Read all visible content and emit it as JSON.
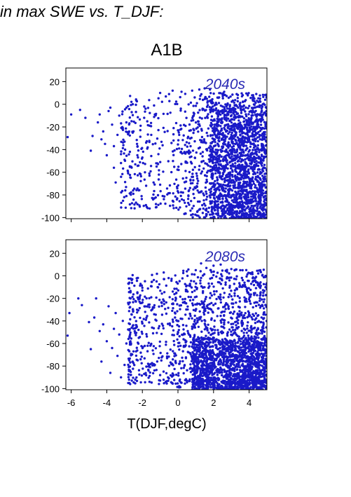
{
  "figure": {
    "header": "in max SWE vs. T_DJF:",
    "title": "A1B",
    "xlabel": "T(DJF,degC)"
  },
  "colors": {
    "points": "#1a1ac8",
    "tag": "#2a2ab4",
    "axis": "#000000"
  },
  "chart_data": [
    {
      "type": "scatter",
      "annotation": "2040s",
      "xlim": [
        -6.3,
        5.0
      ],
      "ylim": [
        -101,
        32
      ],
      "x_ticks": [
        -6,
        -4,
        -2,
        0,
        2,
        4
      ],
      "y_ticks": [
        20,
        0,
        -20,
        -40,
        -60,
        -80,
        -100
      ],
      "x_ticklabels_shown": false,
      "grid": false,
      "points": [
        [
          -6.2,
          -29
        ],
        [
          -6.0,
          -9
        ],
        [
          -5.5,
          -5
        ],
        [
          -5.2,
          -12
        ],
        [
          -4.9,
          -41
        ],
        [
          -4.8,
          -28
        ],
        [
          -4.5,
          -16
        ],
        [
          -4.4,
          -9
        ],
        [
          -4.3,
          -31
        ],
        [
          -4.2,
          -24
        ],
        [
          -4.1,
          -35
        ],
        [
          -4.0,
          -45
        ],
        [
          -3.9,
          -6
        ],
        [
          -3.8,
          -3
        ],
        [
          -3.7,
          -18
        ],
        [
          -3.6,
          -37
        ],
        [
          -3.6,
          -56
        ],
        [
          -3.5,
          -69
        ],
        [
          -3.4,
          -27
        ],
        [
          -3.3,
          -10
        ],
        [
          -3.2,
          -44
        ],
        [
          -3.1,
          -21
        ],
        [
          -3.0,
          -49
        ],
        [
          -3.0,
          -33
        ],
        [
          -2.9,
          -16
        ],
        [
          -2.8,
          -61
        ],
        [
          -2.7,
          -42
        ],
        [
          -2.6,
          -7
        ],
        [
          -2.5,
          -24
        ],
        [
          -2.4,
          -53
        ],
        [
          -2.3,
          -35
        ],
        [
          -2.2,
          -76
        ],
        [
          -2.1,
          -19
        ],
        [
          -2.0,
          -47
        ],
        [
          -1.9,
          -12
        ],
        [
          -1.8,
          -89
        ],
        [
          -1.7,
          -38
        ],
        [
          -1.6,
          -63
        ],
        [
          -1.5,
          -27
        ],
        [
          -1.4,
          -84
        ],
        [
          -1.3,
          -9
        ],
        [
          -1.2,
          -55
        ],
        [
          -1.1,
          -44
        ],
        [
          -1.0,
          -71
        ],
        [
          -1.0,
          10
        ],
        [
          -0.5,
          9
        ],
        [
          -0.3,
          12
        ],
        [
          0.2,
          11
        ],
        [
          0.8,
          12
        ],
        [
          1.2,
          13
        ],
        [
          1.5,
          14
        ],
        [
          1.8,
          13
        ],
        [
          2.6,
          11
        ],
        [
          3.3,
          9
        ],
        [
          3.6,
          7
        ],
        [
          4.2,
          4
        ],
        [
          4.6,
          3
        ],
        [
          4.9,
          4
        ]
      ],
      "generated_points": [
        {
          "count": 260,
          "x": [
            -3.2,
            0.8
          ],
          "y": [
            -92,
            8
          ],
          "bias": 0.6
        },
        {
          "count": 1000,
          "x": [
            -0.3,
            5.0
          ],
          "y": [
            -101,
            10
          ],
          "bias": 1.6
        },
        {
          "count": 1100,
          "x": [
            1.8,
            5.0
          ],
          "y": [
            -101,
            0
          ],
          "bias": 1.0
        }
      ]
    },
    {
      "type": "scatter",
      "annotation": "2080s",
      "xlim": [
        -6.3,
        5.0
      ],
      "ylim": [
        -101,
        32
      ],
      "x_ticks": [
        -6,
        -4,
        -2,
        0,
        2,
        4
      ],
      "y_ticks": [
        20,
        0,
        -20,
        -40,
        -60,
        -80,
        -100
      ],
      "x_ticklabels_shown": true,
      "grid": false,
      "points": [
        [
          -6.2,
          -53
        ],
        [
          -6.1,
          -33
        ],
        [
          -5.6,
          -20
        ],
        [
          -5.4,
          -26
        ],
        [
          -5.0,
          -41
        ],
        [
          -4.9,
          -65
        ],
        [
          -4.7,
          -37
        ],
        [
          -4.6,
          -20
        ],
        [
          -4.4,
          -49
        ],
        [
          -4.3,
          -76
        ],
        [
          -4.2,
          -43
        ],
        [
          -4.0,
          -58
        ],
        [
          -3.9,
          -27
        ],
        [
          -3.8,
          -86
        ],
        [
          -3.7,
          -64
        ],
        [
          -3.6,
          -47
        ],
        [
          -3.5,
          -33
        ],
        [
          -3.4,
          -71
        ],
        [
          -3.3,
          -52
        ],
        [
          -3.2,
          -90
        ],
        [
          -3.1,
          -40
        ],
        [
          -3.0,
          -79
        ],
        [
          -2.9,
          -60
        ],
        [
          -2.8,
          -24
        ],
        [
          -2.7,
          -84
        ],
        [
          -2.6,
          -46
        ],
        [
          -2.5,
          -67
        ],
        [
          -2.4,
          -92
        ],
        [
          -2.3,
          -30
        ],
        [
          -2.2,
          -55
        ],
        [
          -2.1,
          -74
        ],
        [
          -2.0,
          -13
        ],
        [
          -1.9,
          -87
        ],
        [
          -1.8,
          -39
        ],
        [
          -1.7,
          -62
        ],
        [
          -1.6,
          -94
        ],
        [
          -1.5,
          -19
        ],
        [
          -1.4,
          -51
        ],
        [
          -1.3,
          -79
        ],
        [
          -1.2,
          -5
        ],
        [
          -1.0,
          -88
        ],
        [
          -0.8,
          3
        ],
        [
          0.5,
          4
        ],
        [
          1.0,
          5
        ],
        [
          1.3,
          11
        ],
        [
          1.6,
          7
        ],
        [
          2.0,
          9
        ],
        [
          2.4,
          10
        ],
        [
          3.0,
          6
        ],
        [
          3.5,
          5
        ],
        [
          4.2,
          -2
        ]
      ],
      "generated_points": [
        {
          "count": 420,
          "x": [
            -2.8,
            1.5
          ],
          "y": [
            -96,
            2
          ],
          "bias": 0.7
        },
        {
          "count": 1000,
          "x": [
            -0.5,
            5.0
          ],
          "y": [
            -101,
            6
          ],
          "bias": 1.5
        },
        {
          "count": 1200,
          "x": [
            0.8,
            5.0
          ],
          "y": [
            -101,
            -55
          ],
          "bias": 1.0
        }
      ]
    }
  ]
}
